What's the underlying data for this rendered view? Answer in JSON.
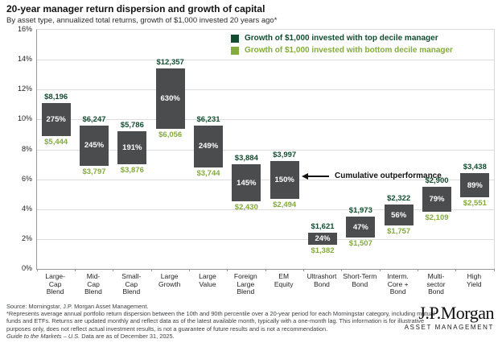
{
  "header": {
    "title": "20-year manager return dispersion and growth of capital",
    "subtitle": "By asset type, annualized total returns, growth of $1,000 invested 20 years ago*"
  },
  "chart_data": {
    "type": "bar",
    "subtype": "floating-range-bars",
    "title": "20-year manager return dispersion and growth of capital",
    "xlabel": "",
    "ylabel": "",
    "ylim": [
      0,
      16
    ],
    "ytick_step": 2,
    "yticks": [
      "0%",
      "2%",
      "4%",
      "6%",
      "8%",
      "10%",
      "12%",
      "14%",
      "16%"
    ],
    "grid": true,
    "legend_position": "top-right-inside",
    "bar_color": "#4B4C4E",
    "legend": [
      {
        "label": "Growth of $1,000 invested with top decile manager",
        "color": "#114D30"
      },
      {
        "label": "Growth of $1,000 invested with bottom decile manager",
        "color": "#84AB3D"
      }
    ],
    "annotation": {
      "text": "Cumulative outperformance",
      "points_at": "EM Equity"
    },
    "categories": [
      "Large-Cap Blend",
      "Mid-Cap Blend",
      "Small-Cap Blend",
      "Large Growth",
      "Large Value",
      "Foreign Large Blend",
      "EM Equity",
      "Ultrashort Bond",
      "Short-Term Bond",
      "Interm. Core + Bond",
      "Multi-sector Bond",
      "High Yield"
    ],
    "categories_display": [
      "Large-\nCap\nBlend",
      "Mid-\nCap\nBlend",
      "Small-\nCap\nBlend",
      "Large\nGrowth",
      "Large\nValue",
      "Foreign\nLarge\nBlend",
      "EM\nEquity",
      "Ultrashort\nBond",
      "Short-Term\nBond",
      "Interm.\nCore +\nBond",
      "Multi-\nsector\nBond",
      "High\nYield"
    ],
    "bars": [
      {
        "category": "Large-Cap Blend",
        "top_decile_pct": 11.1,
        "bottom_decile_pct": 8.9,
        "top_decile_growth": "$8,196",
        "bottom_decile_growth": "$5,444",
        "cumulative_outperformance": "275%"
      },
      {
        "category": "Mid-Cap Blend",
        "top_decile_pct": 9.6,
        "bottom_decile_pct": 6.9,
        "top_decile_growth": "$6,247",
        "bottom_decile_growth": "$3,797",
        "cumulative_outperformance": "245%"
      },
      {
        "category": "Small-Cap Blend",
        "top_decile_pct": 9.2,
        "bottom_decile_pct": 7.0,
        "top_decile_growth": "$5,786",
        "bottom_decile_growth": "$3,876",
        "cumulative_outperformance": "191%"
      },
      {
        "category": "Large Growth",
        "top_decile_pct": 13.4,
        "bottom_decile_pct": 9.4,
        "top_decile_growth": "$12,357",
        "bottom_decile_growth": "$6,056",
        "cumulative_outperformance": "630%"
      },
      {
        "category": "Large Value",
        "top_decile_pct": 9.6,
        "bottom_decile_pct": 6.8,
        "top_decile_growth": "$6,231",
        "bottom_decile_growth": "$3,744",
        "cumulative_outperformance": "249%"
      },
      {
        "category": "Foreign Large Blend",
        "top_decile_pct": 7.0,
        "bottom_decile_pct": 4.5,
        "top_decile_growth": "$3,884",
        "bottom_decile_growth": "$2,430",
        "cumulative_outperformance": "145%"
      },
      {
        "category": "EM Equity",
        "top_decile_pct": 7.2,
        "bottom_decile_pct": 4.7,
        "top_decile_growth": "$3,997",
        "bottom_decile_growth": "$2,494",
        "cumulative_outperformance": "150%"
      },
      {
        "category": "Ultrashort Bond",
        "top_decile_pct": 2.4,
        "bottom_decile_pct": 1.6,
        "top_decile_growth": "$1,621",
        "bottom_decile_growth": "$1,382",
        "cumulative_outperformance": "24%"
      },
      {
        "category": "Short-Term Bond",
        "top_decile_pct": 3.5,
        "bottom_decile_pct": 2.1,
        "top_decile_growth": "$1,973",
        "bottom_decile_growth": "$1,507",
        "cumulative_outperformance": "47%"
      },
      {
        "category": "Interm. Core + Bond",
        "top_decile_pct": 4.3,
        "bottom_decile_pct": 2.9,
        "top_decile_growth": "$2,322",
        "bottom_decile_growth": "$1,757",
        "cumulative_outperformance": "56%"
      },
      {
        "category": "Multi-sector Bond",
        "top_decile_pct": 5.5,
        "bottom_decile_pct": 3.8,
        "top_decile_growth": "$2,900",
        "bottom_decile_growth": "$2,109",
        "cumulative_outperformance": "79%"
      },
      {
        "category": "High Yield",
        "top_decile_pct": 6.4,
        "bottom_decile_pct": 4.8,
        "top_decile_growth": "$3,438",
        "bottom_decile_growth": "$2,551",
        "cumulative_outperformance": "89%"
      }
    ]
  },
  "footer": {
    "source": "Source: Morningstar, J.P. Morgan Asset Management.",
    "footnote": "*Represents average annual portfolio return dispersion between the 10th and 90th percentile over a 20-year period for each Morningstar category, including mutual funds and ETFs. Returns are updated monthly and reflect data as of the latest available month, typically with a one-month lag. This information is for illustrative purposes only, does not reflect actual investment results, is not a guarantee of future results and is not a recommendation.",
    "gtm_title": "Guide to the Markets – U.S.",
    "gtm_rest": " Data are as of December 31, 2025.",
    "logo_primary": "J.P.Morgan",
    "logo_secondary": "ASSET MANAGEMENT"
  }
}
